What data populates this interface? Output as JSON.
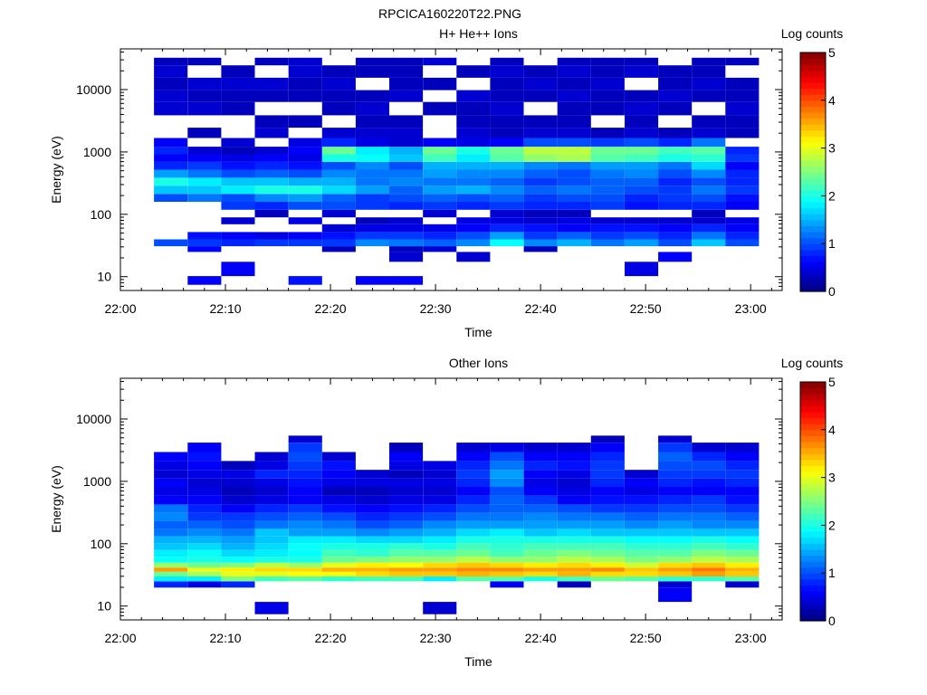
{
  "figure_title": "RPCICA160220T22.PNG",
  "colors": {
    "axis": "#000000",
    "background": "#ffffff"
  },
  "colormap": [
    "#00007f",
    "#0000ff",
    "#007fff",
    "#00ffff",
    "#7fff7f",
    "#ffff00",
    "#ff7f00",
    "#ff0000",
    "#7f0000"
  ],
  "chart_data": [
    {
      "type": "heatmap",
      "title": "H+ He++ Ions",
      "xlabel": "Time",
      "ylabel": "Energy (eV)",
      "x_ticks": [
        "22:00",
        "22:10",
        "22:20",
        "22:30",
        "22:40",
        "22:50",
        "23:00"
      ],
      "x_range_min": [
        0,
        63
      ],
      "y_ticks": [
        "10",
        "100",
        "1000",
        "10000"
      ],
      "y_scale": "log",
      "ylim": [
        6,
        45000
      ],
      "colorbar": {
        "label": "Log counts",
        "ticks": [
          "0",
          "1",
          "2",
          "3",
          "4",
          "5"
        ],
        "range": [
          0,
          5
        ]
      },
      "time_bins_min": [
        3.2,
        6.4,
        9.6,
        12.8,
        16,
        19.2,
        22.4,
        25.6,
        28.8,
        32,
        35.2,
        38.4,
        41.6,
        44.8,
        48,
        51.2,
        54.4,
        57.6
      ],
      "bin_width_min": 3.2,
      "profile_energy_eV": [
        8,
        13,
        23,
        27,
        35,
        45,
        60,
        80,
        100,
        140,
        180,
        250,
        330,
        450,
        600,
        800,
        1050,
        1400,
        2000,
        3000,
        5000,
        8000,
        12000,
        20000,
        30000
      ],
      "profiles": [
        [
          0,
          0,
          0,
          0,
          1.0,
          0,
          0,
          0,
          0,
          0,
          1.0,
          1.6,
          2.0,
          1.4,
          0.8,
          0.6,
          0.8,
          0.6,
          0,
          0,
          0.4,
          0.4,
          0.3,
          0.4,
          0.3
        ],
        [
          0.6,
          0,
          0,
          0.6,
          0.9,
          0.7,
          0,
          0,
          0,
          0,
          1.2,
          1.6,
          1.8,
          1.2,
          0.9,
          0.6,
          0.4,
          0,
          0.3,
          0,
          0.4,
          0.3,
          0.4,
          0,
          0.3
        ],
        [
          0,
          0.6,
          0,
          0,
          0.8,
          0.6,
          0,
          0.4,
          0,
          0.9,
          1.0,
          1.8,
          1.6,
          1.0,
          0.7,
          0.5,
          0.3,
          0.4,
          0,
          0,
          0.3,
          0.3,
          0.4,
          0.3,
          0
        ],
        [
          0,
          0,
          0,
          0,
          0.9,
          0.5,
          0,
          0,
          0.3,
          0.8,
          1.3,
          2.0,
          1.6,
          1.1,
          0.8,
          0.6,
          0.4,
          0,
          0.4,
          0.3,
          0,
          0.3,
          0.4,
          0,
          0.3
        ],
        [
          0.7,
          0,
          0,
          0,
          0.9,
          0.6,
          0,
          0.5,
          0,
          1.0,
          1.4,
          2.0,
          1.5,
          1.0,
          0.7,
          0.5,
          0.6,
          0.5,
          0,
          0.3,
          0,
          0.3,
          0.3,
          0.4,
          0.4
        ],
        [
          0,
          0,
          0,
          0.3,
          0.9,
          0.7,
          0.4,
          0,
          0.4,
          1.0,
          1.1,
          1.7,
          1.5,
          1.3,
          1.0,
          2.0,
          2.4,
          0.8,
          0.4,
          0,
          0.3,
          0.3,
          0.4,
          0.3,
          0
        ],
        [
          0.6,
          0,
          0,
          0,
          1.3,
          0.9,
          0.5,
          0.3,
          0,
          0.9,
          0.9,
          1.4,
          1.2,
          1.2,
          1.3,
          1.9,
          1.8,
          0.5,
          0.4,
          0.3,
          0.4,
          0.3,
          0,
          0.3,
          0.3
        ],
        [
          0.6,
          0,
          0.4,
          0.3,
          1.2,
          0.9,
          0.5,
          0.4,
          0,
          0.8,
          1.0,
          1.1,
          1.3,
          1.2,
          1.0,
          1.6,
          1.5,
          0.4,
          0.4,
          0.3,
          0,
          0.4,
          0.3,
          0.3,
          0.3
        ],
        [
          0,
          0,
          0,
          0.4,
          1.1,
          0.8,
          0.5,
          0,
          0.4,
          0.9,
          1.1,
          1.4,
          1.2,
          1.4,
          1.5,
          2.2,
          2.4,
          0.6,
          0,
          0,
          0.3,
          0,
          0.3,
          0,
          0.4
        ],
        [
          0,
          0,
          0.4,
          0,
          1.3,
          1.0,
          0.6,
          0.5,
          0,
          0.8,
          1.0,
          1.5,
          1.2,
          1.3,
          1.5,
          1.8,
          2.0,
          0.5,
          0.4,
          0.3,
          0.3,
          0.4,
          0,
          0.3,
          0
        ],
        [
          0,
          0,
          0,
          0,
          1.9,
          1.4,
          0.8,
          0.5,
          0.4,
          0.9,
          1.1,
          1.3,
          1.1,
          1.3,
          1.5,
          2.3,
          2.4,
          0.6,
          0.3,
          0.3,
          0.4,
          0.3,
          0.3,
          0.4,
          0.3
        ],
        [
          0,
          0,
          0,
          0.3,
          1.3,
          0.9,
          0.7,
          0.4,
          0.3,
          0.8,
          0.9,
          1.1,
          0.9,
          1.1,
          1.3,
          2.6,
          2.8,
          1.0,
          0.4,
          0.3,
          0,
          0.3,
          0.4,
          0.3,
          0
        ],
        [
          0,
          0,
          0,
          0,
          1.5,
          1.1,
          0.6,
          0.5,
          0.3,
          0.8,
          1.0,
          1.2,
          1.0,
          1.0,
          1.2,
          2.7,
          2.8,
          1.0,
          0.4,
          0.3,
          0.3,
          0.4,
          0.3,
          0.4,
          0.3
        ],
        [
          0,
          0,
          0,
          0,
          1.2,
          0.9,
          0.7,
          0.4,
          0,
          0.9,
          1.0,
          1.1,
          1.1,
          1.2,
          1.4,
          2.3,
          2.4,
          0.9,
          0.3,
          0,
          0.3,
          0.3,
          0.4,
          0.3,
          0.3
        ],
        [
          0,
          0.5,
          0,
          0,
          1.4,
          1.0,
          0.7,
          0.4,
          0,
          0.7,
          0.8,
          1.0,
          1.1,
          1.3,
          1.4,
          2.2,
          2.4,
          1.0,
          0.4,
          0.3,
          0.4,
          0.3,
          0,
          0.4,
          0.3
        ],
        [
          0,
          0,
          0.6,
          0,
          1.0,
          0.8,
          0.6,
          0.4,
          0,
          0.8,
          0.9,
          0.9,
          0.8,
          1.0,
          1.2,
          2.0,
          2.2,
          0.8,
          0.3,
          0,
          0.3,
          0.4,
          0.3,
          0.3,
          0
        ],
        [
          0,
          0,
          0,
          0,
          1.6,
          1.2,
          0.8,
          0.4,
          0.3,
          0.8,
          1.0,
          1.2,
          1.0,
          1.3,
          1.7,
          2.1,
          2.3,
          1.2,
          0.4,
          0.3,
          0,
          0.3,
          0.4,
          0.3,
          0.3
        ],
        [
          0,
          0,
          0,
          0,
          1.0,
          0.8,
          0.6,
          0.5,
          0,
          0.6,
          0.7,
          0.9,
          0.8,
          0.8,
          0.6,
          0.9,
          0.8,
          0,
          0.3,
          0.3,
          0.4,
          0.3,
          0.3,
          0,
          0.3
        ]
      ]
    },
    {
      "type": "heatmap",
      "title": "Other Ions",
      "xlabel": "Time",
      "ylabel": "Energy (eV)",
      "x_ticks": [
        "22:00",
        "22:10",
        "22:20",
        "22:30",
        "22:40",
        "22:50",
        "23:00"
      ],
      "x_range_min": [
        0,
        63
      ],
      "y_ticks": [
        "10",
        "100",
        "1000",
        "10000"
      ],
      "y_scale": "log",
      "ylim": [
        6,
        45000
      ],
      "colorbar": {
        "label": "Log counts",
        "ticks": [
          "0",
          "1",
          "2",
          "3",
          "4",
          "5"
        ],
        "range": [
          0,
          5
        ]
      },
      "time_bins_min": [
        3.2,
        6.4,
        9.6,
        12.8,
        16,
        19.2,
        22.4,
        25.6,
        28.8,
        32,
        35.2,
        38.4,
        41.6,
        44.8,
        48,
        51.2,
        54.4,
        57.6
      ],
      "bin_width_min": 3.2,
      "profile_energy_eV": [
        8,
        17,
        23,
        27,
        33,
        38,
        45,
        55,
        70,
        90,
        115,
        150,
        200,
        270,
        360,
        500,
        700,
        950,
        1300,
        1800,
        2500,
        3500,
        5000
      ],
      "profiles": [
        [
          0,
          0,
          0.8,
          1.8,
          2.4,
          3.6,
          2.6,
          1.9,
          1.8,
          1.6,
          1.5,
          1.2,
          1.1,
          1.3,
          1.2,
          0.6,
          0.5,
          0.6,
          0.4,
          0.5,
          0.6,
          0,
          0
        ],
        [
          0,
          0,
          0.5,
          1.8,
          2.7,
          3.0,
          2.4,
          2.0,
          1.9,
          1.7,
          1.5,
          1.3,
          1.1,
          0.9,
          0.8,
          0.6,
          0.5,
          0.4,
          0.5,
          0.6,
          0.7,
          0.6,
          0
        ],
        [
          0,
          0,
          0.8,
          2.5,
          3.0,
          3.2,
          2.5,
          1.9,
          1.7,
          1.5,
          1.4,
          1.2,
          1.0,
          0.9,
          0.6,
          0.4,
          0.3,
          0.4,
          0.5,
          0.3,
          0,
          0,
          0
        ],
        [
          0.5,
          0,
          0,
          2.2,
          3.0,
          3.3,
          2.8,
          2.0,
          1.8,
          1.7,
          1.6,
          1.6,
          1.2,
          1.0,
          0.8,
          0.5,
          0.4,
          0.5,
          0.8,
          0.5,
          0.4,
          0,
          0
        ],
        [
          0,
          0,
          0,
          2.3,
          3.1,
          3.3,
          2.6,
          2.0,
          1.9,
          1.9,
          1.8,
          1.4,
          1.3,
          1.1,
          0.9,
          0.6,
          0.6,
          0.7,
          0.8,
          0.9,
          1.0,
          0.9,
          0.4
        ],
        [
          0,
          0,
          0,
          2.1,
          3.1,
          3.5,
          3.0,
          2.4,
          2.2,
          2.0,
          1.8,
          1.4,
          1.2,
          1.0,
          0.7,
          0.5,
          0.3,
          0.5,
          0.6,
          0.7,
          0.4,
          0,
          0
        ],
        [
          0,
          0,
          0,
          2.2,
          3.3,
          3.5,
          3.2,
          2.5,
          2.1,
          2.0,
          1.7,
          1.3,
          1.0,
          0.8,
          0.6,
          0.4,
          0.3,
          0.5,
          0.4,
          0,
          0,
          0,
          0
        ],
        [
          0,
          0,
          0,
          2.2,
          3.4,
          3.6,
          3.1,
          2.6,
          2.3,
          2.1,
          1.7,
          1.4,
          1.1,
          0.9,
          0.7,
          0.5,
          0.4,
          0.5,
          0.3,
          0.5,
          0.6,
          0.3,
          0
        ],
        [
          0.4,
          0,
          0,
          1.8,
          3.4,
          3.6,
          3.3,
          2.6,
          2.3,
          2.0,
          1.8,
          1.5,
          1.3,
          1.0,
          0.8,
          0.5,
          0.4,
          0.5,
          0.4,
          0.5,
          0,
          0,
          0
        ],
        [
          0,
          0,
          0,
          2.3,
          3.5,
          3.7,
          3.4,
          2.8,
          2.4,
          2.2,
          2.0,
          1.7,
          1.4,
          1.2,
          1.0,
          0.8,
          0.6,
          0.8,
          0.9,
          0.8,
          0.6,
          0.4,
          0
        ],
        [
          0,
          0,
          0.6,
          2.3,
          3.4,
          3.7,
          3.3,
          2.6,
          2.2,
          2.1,
          2.0,
          1.8,
          1.4,
          1.2,
          1.1,
          1.1,
          1.0,
          1.3,
          1.4,
          1.2,
          1.0,
          0.5,
          0
        ],
        [
          0,
          0,
          0,
          2.0,
          3.3,
          3.6,
          3.2,
          2.6,
          2.4,
          2.2,
          2.0,
          1.6,
          1.4,
          1.3,
          1.1,
          0.9,
          0.6,
          0.5,
          0.6,
          0.8,
          0.6,
          0.4,
          0
        ],
        [
          0,
          0,
          0.3,
          2.2,
          3.5,
          3.6,
          3.3,
          2.8,
          2.5,
          2.2,
          2.0,
          1.7,
          1.4,
          1.2,
          1.0,
          0.6,
          0.5,
          0.4,
          0.5,
          0.7,
          0.6,
          0.4,
          0
        ],
        [
          0,
          0,
          0,
          2.4,
          3.3,
          3.7,
          3.2,
          2.7,
          2.4,
          2.2,
          2.0,
          1.6,
          1.4,
          1.2,
          0.9,
          0.7,
          0.6,
          0.8,
          0.9,
          0.9,
          0.8,
          0.6,
          0.3
        ],
        [
          0,
          0,
          0,
          2.3,
          3.3,
          3.4,
          2.9,
          2.5,
          2.3,
          2.1,
          1.9,
          1.6,
          1.3,
          1.1,
          0.9,
          0.7,
          0.5,
          0.6,
          0.4,
          0,
          0,
          0,
          0
        ],
        [
          0,
          0.6,
          0.4,
          2.1,
          3.4,
          3.6,
          3.3,
          2.6,
          2.3,
          2.1,
          1.9,
          1.6,
          1.4,
          1.2,
          1.0,
          0.8,
          0.6,
          0.8,
          0.9,
          1.0,
          1.1,
          0.9,
          0.4
        ],
        [
          0,
          0,
          0,
          2.1,
          3.6,
          3.8,
          3.4,
          2.8,
          2.5,
          2.2,
          2.0,
          1.6,
          1.3,
          1.2,
          1.0,
          0.9,
          0.6,
          0.7,
          0.9,
          1.0,
          0.8,
          0.4,
          0
        ],
        [
          0,
          0,
          0.4,
          2.3,
          3.4,
          3.5,
          3.2,
          2.7,
          2.4,
          2.1,
          1.9,
          1.6,
          1.3,
          1.1,
          0.9,
          0.7,
          0.6,
          0.8,
          0.9,
          0.8,
          0.6,
          0.4,
          0
        ]
      ]
    }
  ]
}
